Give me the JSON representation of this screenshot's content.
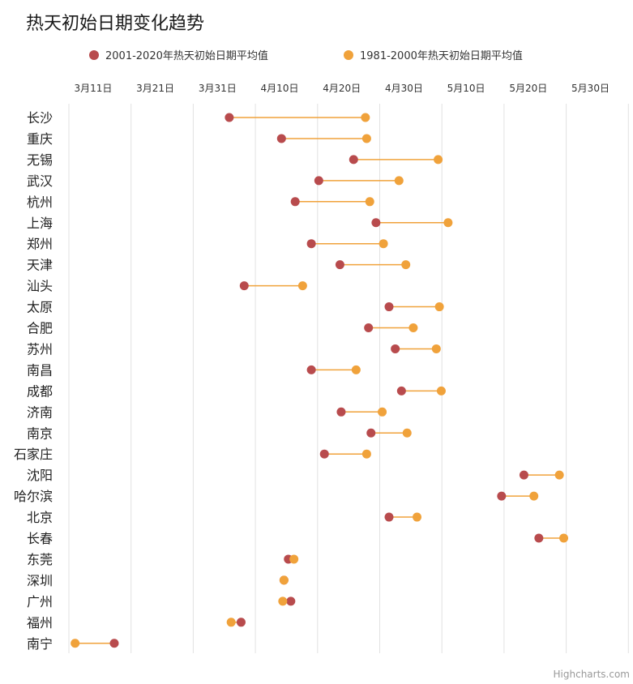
{
  "chart_data": {
    "type": "dumbbell",
    "title": "热天初始日期变化趋势",
    "credit": "Highcharts.com",
    "legend_position": "top",
    "grid": true,
    "x_axis": {
      "position": "top",
      "range_days_from_mar11": [
        0,
        90
      ],
      "ticks": [
        {
          "label": "3月11日",
          "value": 0
        },
        {
          "label": "3月21日",
          "value": 10
        },
        {
          "label": "3月31日",
          "value": 20
        },
        {
          "label": "4月10日",
          "value": 30
        },
        {
          "label": "4月20日",
          "value": 40
        },
        {
          "label": "4月30日",
          "value": 50
        },
        {
          "label": "5月10日",
          "value": 60
        },
        {
          "label": "5月20日",
          "value": 70
        },
        {
          "label": "5月30日",
          "value": 80
        }
      ]
    },
    "series": [
      {
        "name": "2001-2020年热天初始日期平均值",
        "color": "#b84b4d"
      },
      {
        "name": "1981-2000年热天初始日期平均值",
        "color": "#f0a23b"
      }
    ],
    "connector_color": "#f0a23b",
    "categories": [
      "长沙",
      "重庆",
      "无锡",
      "武汉",
      "杭州",
      "上海",
      "郑州",
      "天津",
      "汕头",
      "太原",
      "合肥",
      "苏州",
      "南昌",
      "成都",
      "济南",
      "南京",
      "石家庄",
      "沈阳",
      "哈尔滨",
      "北京",
      "长春",
      "东莞",
      "深圳",
      "广州",
      "福州",
      "南宁"
    ],
    "recent_values": [
      25.8,
      34.2,
      45.8,
      40.2,
      36.4,
      49.4,
      39.0,
      43.6,
      28.2,
      51.5,
      48.2,
      52.5,
      39.0,
      53.5,
      43.8,
      48.6,
      41.1,
      73.2,
      69.6,
      51.5,
      75.6,
      35.3,
      34.6,
      35.7,
      27.7,
      7.3
    ],
    "previous_values": [
      47.7,
      47.9,
      59.4,
      53.1,
      48.4,
      61.0,
      50.6,
      54.2,
      37.6,
      59.6,
      55.4,
      59.1,
      46.2,
      59.9,
      50.4,
      54.4,
      47.9,
      78.9,
      74.8,
      56.0,
      79.6,
      36.2,
      34.6,
      34.4,
      26.1,
      1.0
    ]
  }
}
